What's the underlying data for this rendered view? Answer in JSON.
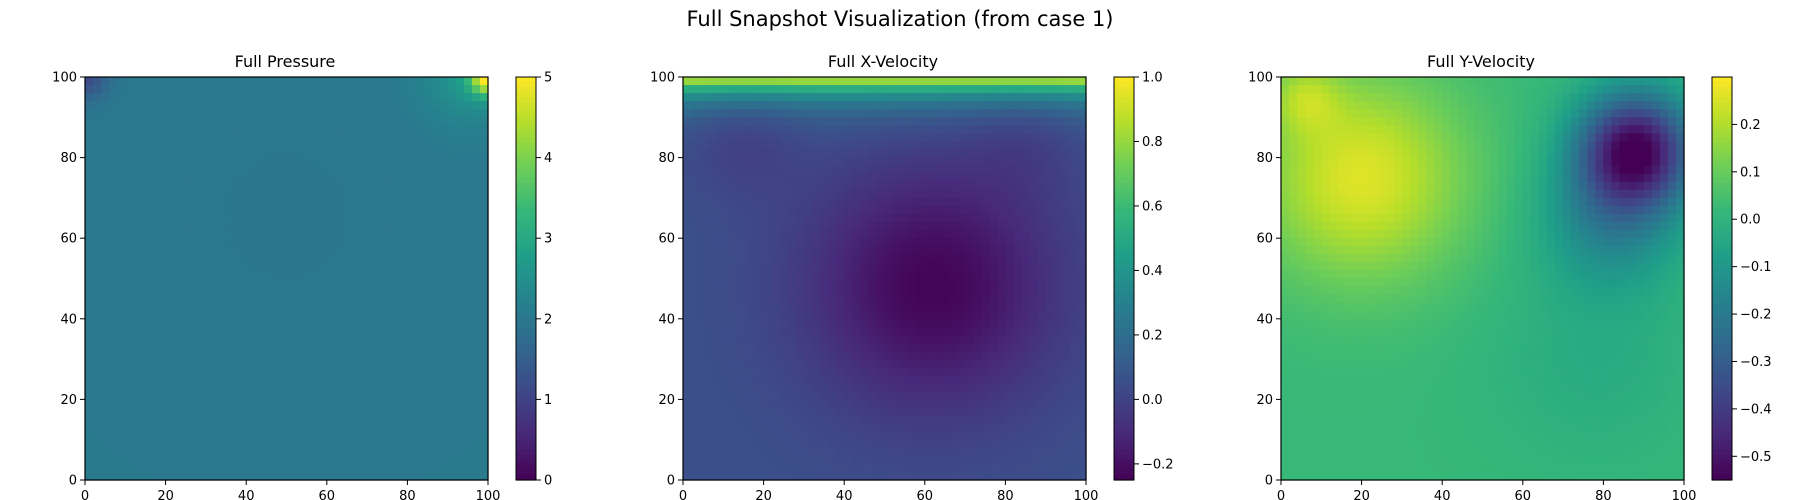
{
  "figure": {
    "title": "Full Snapshot Visualization (from case 1)"
  },
  "colormap": [
    "#440154",
    "#482878",
    "#3e4989",
    "#31688e",
    "#26828e",
    "#1f9e89",
    "#35b779",
    "#6ece58",
    "#b5de2b",
    "#fde725"
  ],
  "chart_data": [
    {
      "type": "heatmap",
      "title": "Full Pressure",
      "x_range": [
        0,
        100
      ],
      "y_range": [
        0,
        100
      ],
      "x_ticks": [
        0,
        20,
        40,
        60,
        80,
        100
      ],
      "y_ticks": [
        0,
        20,
        40,
        60,
        80,
        100
      ],
      "color_range": [
        0,
        5
      ],
      "colorbar_ticks": [
        0,
        1,
        2,
        3,
        4,
        5
      ],
      "colorbar_labels": [
        "0",
        "1",
        "2",
        "3",
        "4",
        "5"
      ],
      "field": {
        "base": 2.05,
        "blobs": [
          {
            "x": 0,
            "y": 100,
            "amp": -0.9,
            "sigma": 4
          },
          {
            "x": 100,
            "y": 100,
            "amp": 2.9,
            "sigma": 3
          },
          {
            "x": 95,
            "y": 100,
            "amp": 0.6,
            "sigma": 8
          },
          {
            "x": 50,
            "y": 65,
            "amp": -0.08,
            "sigma": 35
          }
        ]
      }
    },
    {
      "type": "heatmap",
      "title": "Full X-Velocity",
      "x_range": [
        0,
        100
      ],
      "y_range": [
        0,
        100
      ],
      "x_ticks": [
        0,
        20,
        40,
        60,
        80,
        100
      ],
      "y_ticks": [
        0,
        20,
        40,
        60,
        80,
        100
      ],
      "color_range": [
        -0.25,
        1.0
      ],
      "colorbar_ticks": [
        -0.2,
        0.0,
        0.2,
        0.4,
        0.6,
        0.8,
        1.0
      ],
      "colorbar_labels": [
        "−0.2",
        "0.0",
        "0.2",
        "0.4",
        "0.6",
        "0.8",
        "1.0"
      ],
      "field": {
        "base": 0.06,
        "lid": {
          "amp": 0.94,
          "depth": 4.5
        },
        "blobs": [
          {
            "x": 62,
            "y": 48,
            "amp": -0.3,
            "sigma": 22
          },
          {
            "x": 15,
            "y": 85,
            "amp": -0.08,
            "sigma": 10
          },
          {
            "x": 85,
            "y": 85,
            "amp": -0.06,
            "sigma": 10
          }
        ]
      }
    },
    {
      "type": "heatmap",
      "title": "Full Y-Velocity",
      "x_range": [
        0,
        100
      ],
      "y_range": [
        0,
        100
      ],
      "x_ticks": [
        0,
        20,
        40,
        60,
        80,
        100
      ],
      "y_ticks": [
        0,
        20,
        40,
        60,
        80,
        100
      ],
      "color_range": [
        -0.55,
        0.3
      ],
      "colorbar_ticks": [
        -0.5,
        -0.4,
        -0.3,
        -0.2,
        -0.1,
        0.0,
        0.1,
        0.2
      ],
      "colorbar_labels": [
        "−0.5",
        "−0.4",
        "−0.3",
        "−0.2",
        "−0.1",
        "0.0",
        "0.1",
        "0.2"
      ],
      "field": {
        "base": 0.02,
        "blobs": [
          {
            "x": 20,
            "y": 75,
            "amp": 0.24,
            "sigma": 18
          },
          {
            "x": 6,
            "y": 95,
            "amp": 0.12,
            "sigma": 6
          },
          {
            "x": 88,
            "y": 82,
            "amp": -0.55,
            "sigma": 10
          },
          {
            "x": 82,
            "y": 65,
            "amp": -0.18,
            "sigma": 12
          },
          {
            "x": 78,
            "y": 30,
            "amp": -0.05,
            "sigma": 18
          }
        ]
      }
    }
  ]
}
